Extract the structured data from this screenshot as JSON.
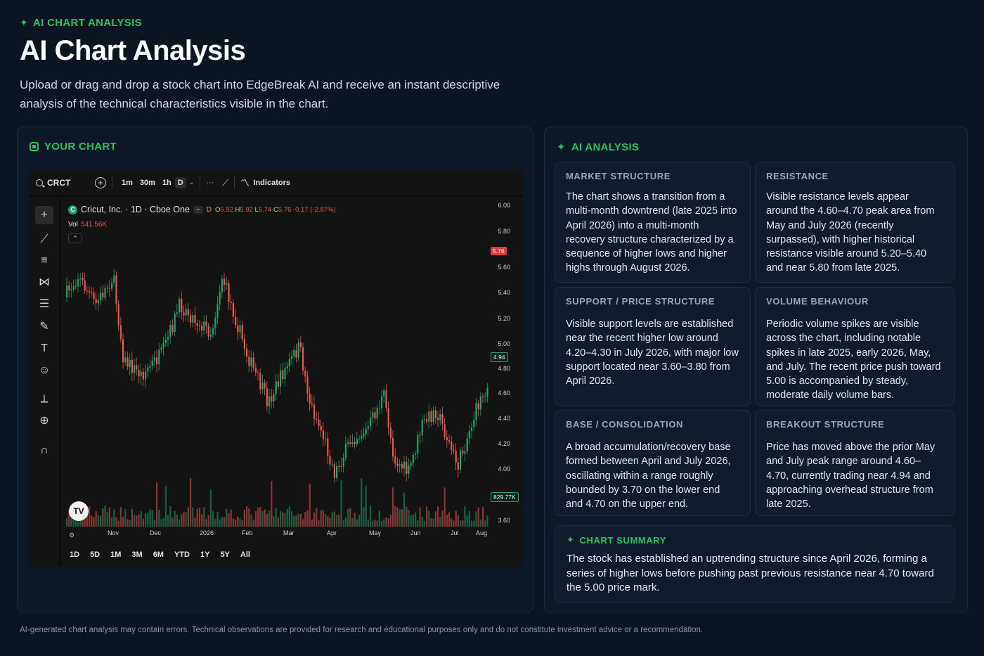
{
  "header": {
    "eyebrow": "AI CHART ANALYSIS",
    "title": "AI Chart Analysis",
    "description": "Upload or drag and drop a stock chart into EdgeBreak AI and receive an instant descriptive analysis of the technical characteristics visible in the chart."
  },
  "left_panel": {
    "title": "YOUR CHART",
    "widget": {
      "symbol": "CRCT",
      "intervals": [
        "1m",
        "30m",
        "1h",
        "D"
      ],
      "indicators_label": "Indicators",
      "legend": {
        "name": "Cricut, Inc. · 1D · Cboe One",
        "minus": "−",
        "interval_flag": "D",
        "open": "5.92",
        "high": "5.92",
        "low": "5.74",
        "close": "5.76",
        "change": "-0.17 (-2.87%)"
      },
      "volume": {
        "label": "Vol",
        "value": "541.56K"
      },
      "collapse_glyph": "⌃",
      "price_ticks": [
        "6.00",
        "5.80",
        "5.60",
        "5.40",
        "5.20",
        "5.00",
        "4.80",
        "4.60",
        "4.40",
        "4.20",
        "4.00",
        "3.60"
      ],
      "price_tags": {
        "current_red": "5.76",
        "current_green": "4.94",
        "volume_tag": "829.77K"
      },
      "x_ticks": [
        "Nov",
        "Dec",
        "2026",
        "Feb",
        "Mar",
        "Apr",
        "May",
        "Jun",
        "Jul",
        "Aug"
      ],
      "ranges": [
        "1D",
        "5D",
        "1M",
        "3M",
        "6M",
        "YTD",
        "1Y",
        "5Y",
        "All"
      ],
      "badge": "TV",
      "colors": {
        "up": "#1fa36b",
        "down": "#ef5350",
        "bg": "#131313"
      }
    }
  },
  "right_panel": {
    "title": "AI ANALYSIS",
    "cards": [
      {
        "title": "MARKET STRUCTURE",
        "body": "The chart shows a transition from a multi-month downtrend (late 2025 into April 2026) into a multi-month recovery structure characterized by a sequence of higher lows and higher highs through August 2026."
      },
      {
        "title": "RESISTANCE",
        "body": "Visible resistance levels appear around the 4.60–4.70 peak area from May and July 2026 (recently surpassed), with higher historical resistance visible around 5.20–5.40 and near 5.80 from late 2025."
      },
      {
        "title": "SUPPORT / PRICE STRUCTURE",
        "body": "Visible support levels are established near the recent higher low around 4.20–4.30 in July 2026, with major low support located near 3.60–3.80 from April 2026."
      },
      {
        "title": "VOLUME BEHAVIOUR",
        "body": "Periodic volume spikes are visible across the chart, including notable spikes in late 2025, early 2026, May, and July. The recent price push toward 5.00 is accompanied by steady, moderate daily volume bars."
      },
      {
        "title": "BASE / CONSOLIDATION",
        "body": "A broad accumulation/recovery base formed between April and July 2026, oscillating within a range roughly bounded by 3.70 on the lower end and 4.70 on the upper end."
      },
      {
        "title": "BREAKOUT STRUCTURE",
        "body": "Price has moved above the prior May and July peak range around 4.60–4.70, currently trading near 4.94 and approaching overhead structure from late 2025."
      }
    ],
    "summary": {
      "title": "CHART SUMMARY",
      "body": "The stock has established an uptrending structure since April 2026, forming a series of higher lows before pushing past previous resistance near 4.70 toward the 5.00 price mark."
    }
  },
  "disclaimer": "AI-generated chart analysis may contain errors. Technical observations are provided for research and educational purposes only and do not constitute investment advice or a recommendation.",
  "accent_color": "#22c55e"
}
